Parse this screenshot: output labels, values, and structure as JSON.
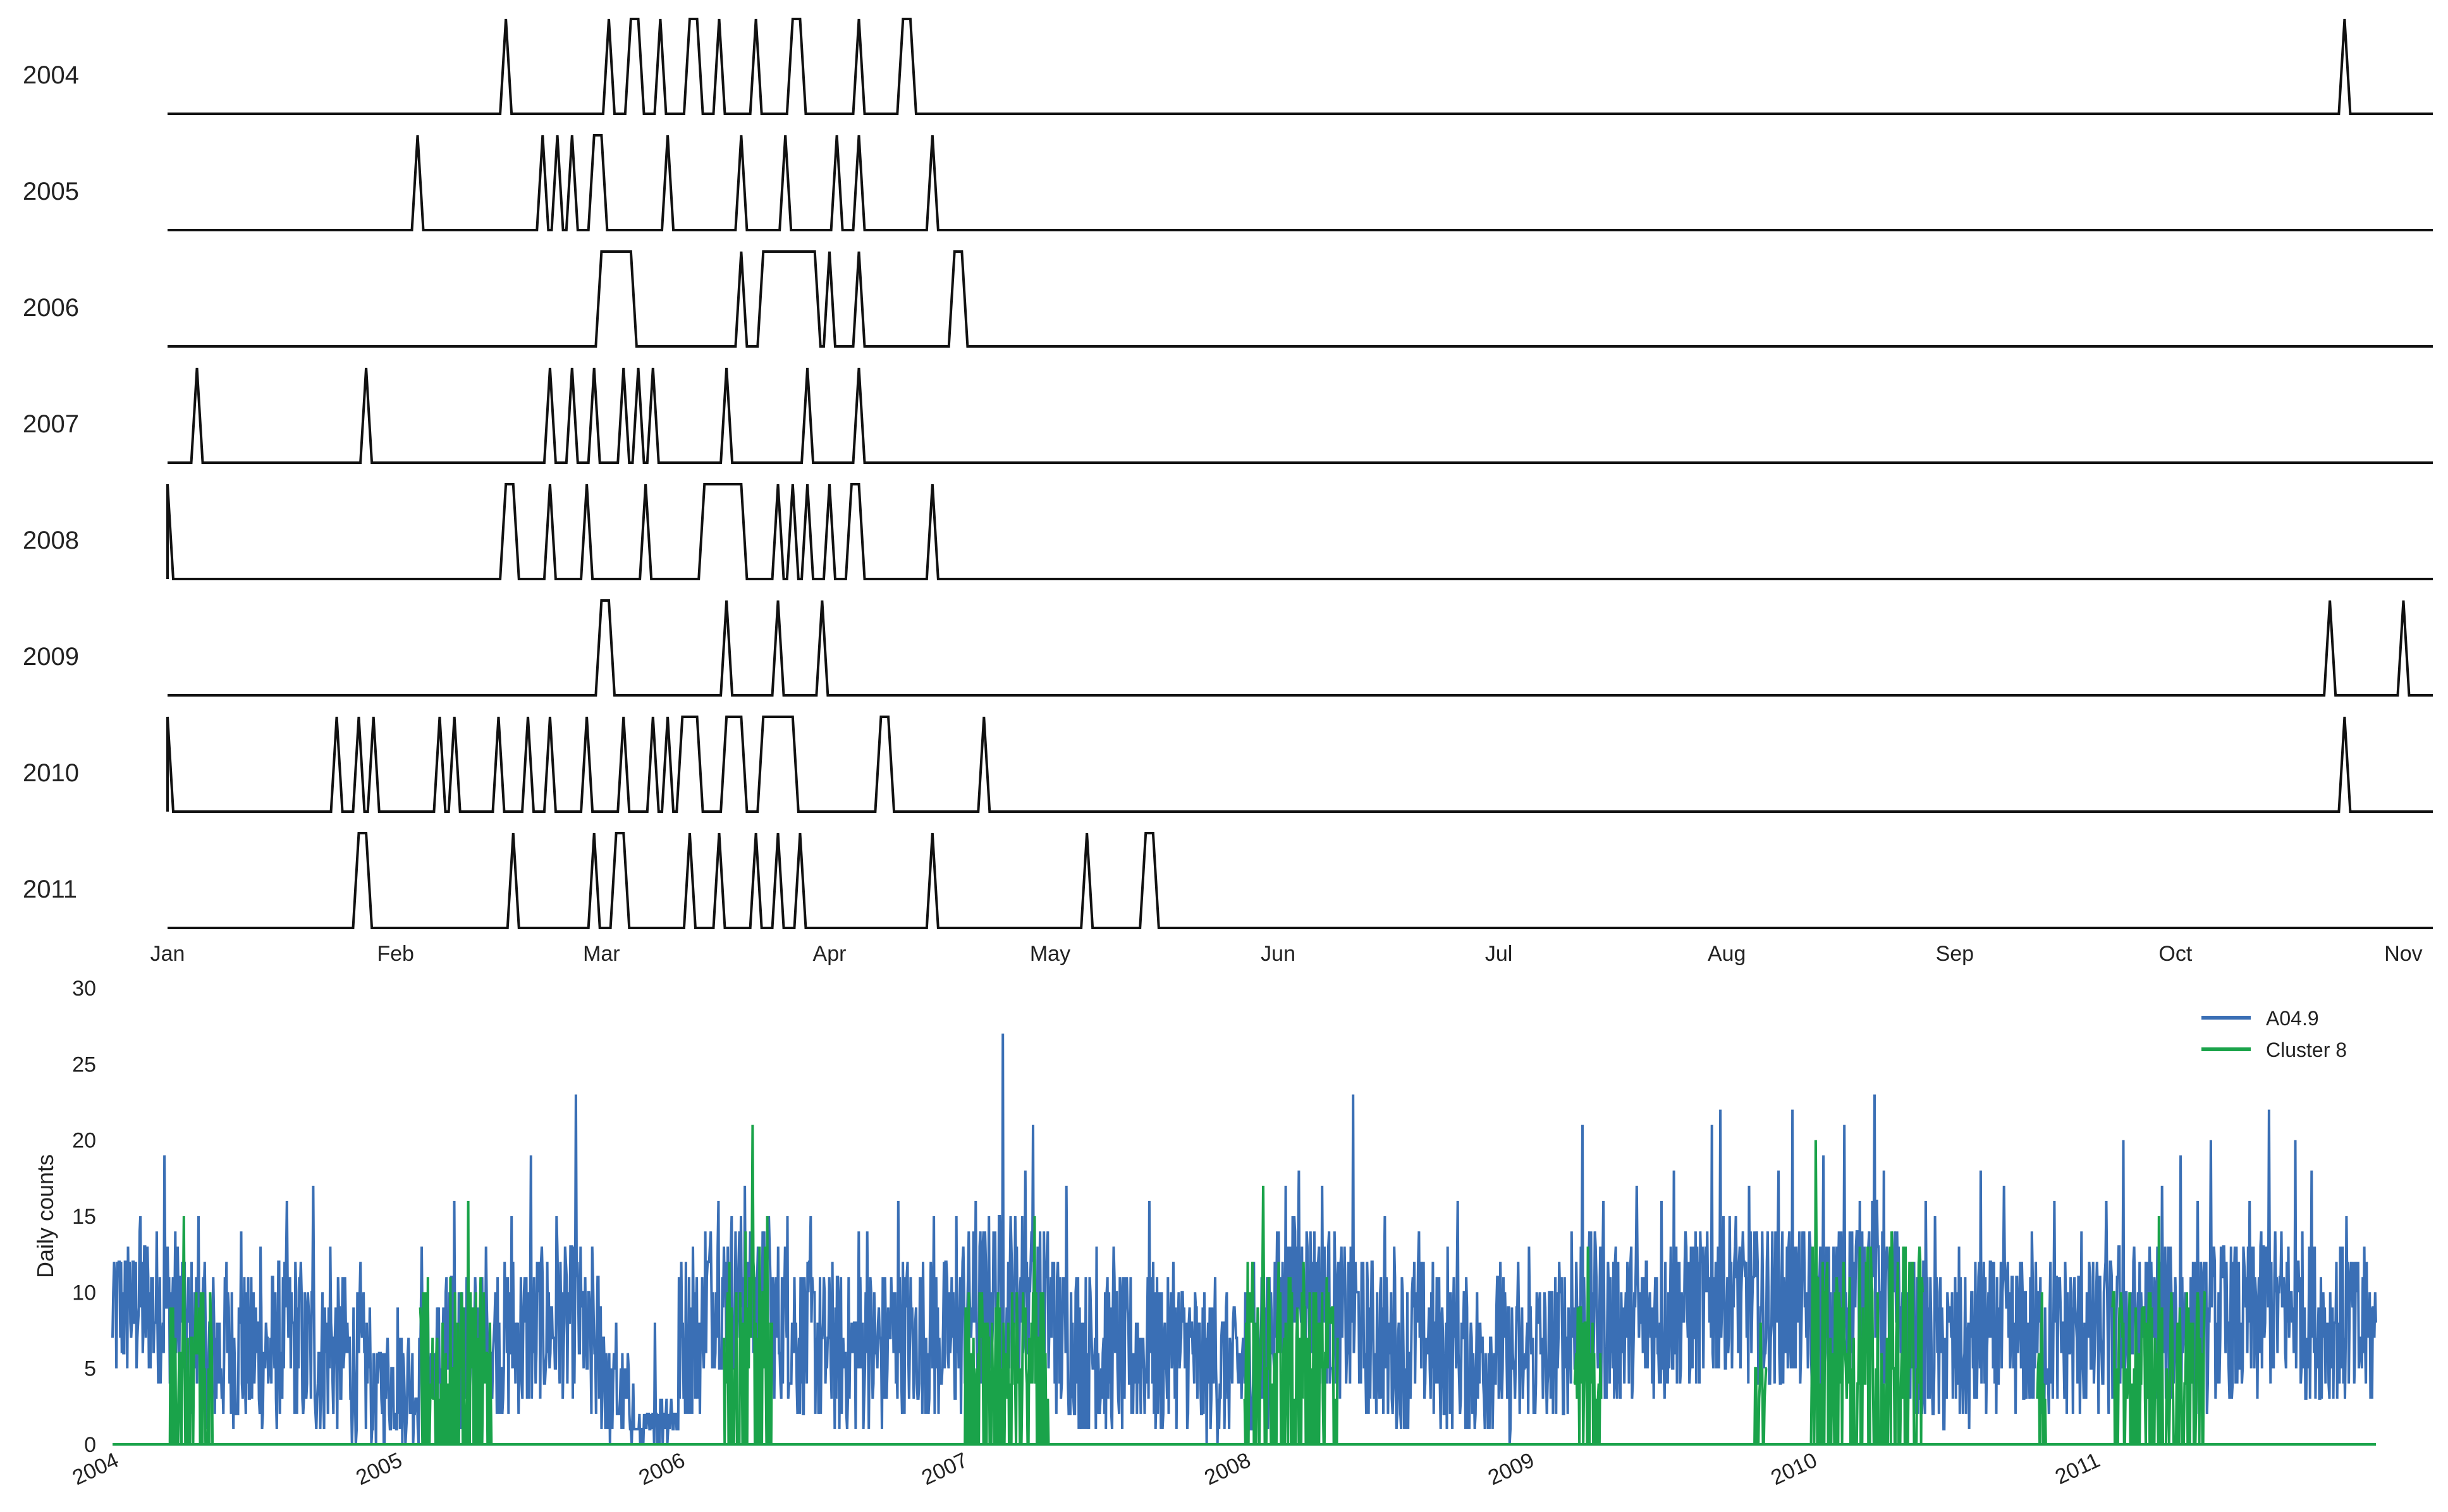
{
  "chart_data": [
    {
      "type": "line",
      "description_role": "event raster per year",
      "x_unit": "day of year",
      "xlim": [
        1,
        309
      ],
      "x_tick_labels": [
        "Jan",
        "Feb",
        "Mar",
        "Apr",
        "May",
        "Jun",
        "Jul",
        "Aug",
        "Sep",
        "Oct",
        "Nov"
      ],
      "x_tick_days": [
        1,
        32,
        60,
        91,
        121,
        152,
        182,
        213,
        244,
        274,
        305
      ],
      "series": [
        {
          "name": "2004",
          "events": [
            [
              47,
              47
            ],
            [
              61,
              61
            ],
            [
              64,
              65
            ],
            [
              68,
              68
            ],
            [
              72,
              73
            ],
            [
              76,
              76
            ],
            [
              81,
              81
            ],
            [
              86,
              87
            ],
            [
              95,
              95
            ],
            [
              101,
              102
            ],
            [
              297,
              297
            ]
          ]
        },
        {
          "name": "2005",
          "events": [
            [
              35,
              35
            ],
            [
              52,
              52
            ],
            [
              54,
              54
            ],
            [
              56,
              56
            ],
            [
              59,
              60
            ],
            [
              69,
              69
            ],
            [
              79,
              79
            ],
            [
              85,
              85
            ],
            [
              92,
              92
            ],
            [
              95,
              95
            ],
            [
              105,
              105
            ]
          ]
        },
        {
          "name": "2006",
          "events": [
            [
              60,
              64
            ],
            [
              79,
              79
            ],
            [
              82,
              89
            ],
            [
              91,
              91
            ],
            [
              95,
              95
            ],
            [
              108,
              109
            ]
          ]
        },
        {
          "name": "2007",
          "events": [
            [
              5,
              5
            ],
            [
              28,
              28
            ],
            [
              53,
              53
            ],
            [
              56,
              56
            ],
            [
              59,
              59
            ],
            [
              63,
              63
            ],
            [
              65,
              65
            ],
            [
              67,
              67
            ],
            [
              77,
              77
            ],
            [
              88,
              88
            ],
            [
              95,
              95
            ]
          ]
        },
        {
          "name": "2008",
          "events": [
            [
              1,
              1
            ],
            [
              47,
              48
            ],
            [
              53,
              53
            ],
            [
              58,
              58
            ],
            [
              66,
              66
            ],
            [
              74,
              79
            ],
            [
              84,
              84
            ],
            [
              86,
              86
            ],
            [
              88,
              88
            ],
            [
              91,
              91
            ],
            [
              94,
              95
            ],
            [
              105,
              105
            ]
          ]
        },
        {
          "name": "2009",
          "events": [
            [
              60,
              61
            ],
            [
              77,
              77
            ],
            [
              84,
              84
            ],
            [
              90,
              90
            ],
            [
              295,
              295
            ],
            [
              305,
              305
            ]
          ]
        },
        {
          "name": "2010",
          "events": [
            [
              1,
              1
            ],
            [
              24,
              24
            ],
            [
              27,
              27
            ],
            [
              29,
              29
            ],
            [
              38,
              38
            ],
            [
              40,
              40
            ],
            [
              46,
              46
            ],
            [
              50,
              50
            ],
            [
              53,
              53
            ],
            [
              58,
              58
            ],
            [
              63,
              63
            ],
            [
              67,
              67
            ],
            [
              69,
              69
            ],
            [
              71,
              73
            ],
            [
              77,
              79
            ],
            [
              82,
              86
            ],
            [
              98,
              99
            ],
            [
              112,
              112
            ],
            [
              297,
              297
            ]
          ]
        },
        {
          "name": "2011",
          "events": [
            [
              27,
              28
            ],
            [
              48,
              48
            ],
            [
              59,
              59
            ],
            [
              62,
              63
            ],
            [
              72,
              72
            ],
            [
              76,
              76
            ],
            [
              81,
              81
            ],
            [
              84,
              84
            ],
            [
              87,
              87
            ],
            [
              105,
              105
            ],
            [
              126,
              126
            ],
            [
              134,
              135
            ]
          ]
        }
      ]
    },
    {
      "type": "line",
      "xlabel": "",
      "ylabel": "Daily counts",
      "xlim": [
        "2004-01-01",
        "2011-12-31"
      ],
      "ylim": [
        0,
        30
      ],
      "y_ticks": [
        0,
        5,
        10,
        15,
        20,
        25,
        30
      ],
      "x_tick_labels": [
        "2004",
        "2005",
        "2006",
        "2007",
        "2008",
        "2009",
        "2010",
        "2011"
      ],
      "legend": "top-right",
      "series": [
        {
          "name": "A04.9",
          "color": "#3a6fb5",
          "daily_counts_by_month": [
            {
              "month": "2004-01",
              "mean": 9,
              "max": 13
            },
            {
              "month": "2004-02",
              "mean": 9,
              "max": 15
            },
            {
              "month": "2004-03",
              "mean": 9,
              "max": 19
            },
            {
              "month": "2004-04",
              "mean": 7,
              "max": 15
            },
            {
              "month": "2004-05",
              "mean": 6,
              "max": 12
            },
            {
              "month": "2004-06",
              "mean": 6,
              "max": 14
            },
            {
              "month": "2004-07",
              "mean": 6,
              "max": 13
            },
            {
              "month": "2004-08",
              "mean": 7,
              "max": 16
            },
            {
              "month": "2004-09",
              "mean": 6,
              "max": 17
            },
            {
              "month": "2004-10",
              "mean": 6,
              "max": 13
            },
            {
              "month": "2004-11",
              "mean": 5,
              "max": 12
            },
            {
              "month": "2004-12",
              "mean": 4,
              "max": 7
            },
            {
              "month": "2005-01",
              "mean": 4,
              "max": 9
            },
            {
              "month": "2005-02",
              "mean": 5,
              "max": 13
            },
            {
              "month": "2005-03",
              "mean": 6,
              "max": 16
            },
            {
              "month": "2005-04",
              "mean": 6,
              "max": 13
            },
            {
              "month": "2005-05",
              "mean": 7,
              "max": 15
            },
            {
              "month": "2005-06",
              "mean": 7,
              "max": 19
            },
            {
              "month": "2005-07",
              "mean": 8,
              "max": 15
            },
            {
              "month": "2005-08",
              "mean": 8,
              "max": 23
            },
            {
              "month": "2005-09",
              "mean": 6,
              "max": 13
            },
            {
              "month": "2005-10",
              "mean": 3,
              "max": 8
            },
            {
              "month": "2005-11",
              "mean": 1,
              "max": 4
            },
            {
              "month": "2005-12",
              "mean": 2,
              "max": 8
            },
            {
              "month": "2006-01",
              "mean": 7,
              "max": 13
            },
            {
              "month": "2006-02",
              "mean": 10,
              "max": 16
            },
            {
              "month": "2006-03",
              "mean": 10,
              "max": 17
            },
            {
              "month": "2006-04",
              "mean": 9,
              "max": 15
            },
            {
              "month": "2006-05",
              "mean": 8,
              "max": 15
            },
            {
              "month": "2006-06",
              "mean": 7,
              "max": 15
            },
            {
              "month": "2006-07",
              "mean": 6,
              "max": 12
            },
            {
              "month": "2006-08",
              "mean": 6,
              "max": 14
            },
            {
              "month": "2006-09",
              "mean": 6,
              "max": 14
            },
            {
              "month": "2006-10",
              "mean": 7,
              "max": 16
            },
            {
              "month": "2006-11",
              "mean": 7,
              "max": 15
            },
            {
              "month": "2006-12",
              "mean": 7,
              "max": 15
            },
            {
              "month": "2007-01",
              "mean": 9,
              "max": 16
            },
            {
              "month": "2007-02",
              "mean": 10,
              "max": 27
            },
            {
              "month": "2007-03",
              "mean": 10,
              "max": 18
            },
            {
              "month": "2007-04",
              "mean": 9,
              "max": 21
            },
            {
              "month": "2007-05",
              "mean": 7,
              "max": 17
            },
            {
              "month": "2007-06",
              "mean": 6,
              "max": 13
            },
            {
              "month": "2007-07",
              "mean": 6,
              "max": 13
            },
            {
              "month": "2007-08",
              "mean": 6,
              "max": 16
            },
            {
              "month": "2007-09",
              "mean": 6,
              "max": 12
            },
            {
              "month": "2007-10",
              "mean": 6,
              "max": 12
            },
            {
              "month": "2007-11",
              "mean": 5,
              "max": 11
            },
            {
              "month": "2007-12",
              "mean": 5,
              "max": 10
            },
            {
              "month": "2008-01",
              "mean": 6,
              "max": 12
            },
            {
              "month": "2008-02",
              "mean": 9,
              "max": 17
            },
            {
              "month": "2008-03",
              "mean": 10,
              "max": 18
            },
            {
              "month": "2008-04",
              "mean": 9,
              "max": 17
            },
            {
              "month": "2008-05",
              "mean": 8,
              "max": 23
            },
            {
              "month": "2008-06",
              "mean": 7,
              "max": 15
            },
            {
              "month": "2008-07",
              "mean": 6,
              "max": 13
            },
            {
              "month": "2008-08",
              "mean": 7,
              "max": 14
            },
            {
              "month": "2008-09",
              "mean": 6,
              "max": 13
            },
            {
              "month": "2008-10",
              "mean": 6,
              "max": 16
            },
            {
              "month": "2008-11",
              "mean": 6,
              "max": 12
            },
            {
              "month": "2008-12",
              "mean": 5,
              "max": 12
            },
            {
              "month": "2009-01",
              "mean": 6,
              "max": 13
            },
            {
              "month": "2009-02",
              "mean": 7,
              "max": 14
            },
            {
              "month": "2009-03",
              "mean": 9,
              "max": 21
            },
            {
              "month": "2009-04",
              "mean": 8,
              "max": 16
            },
            {
              "month": "2009-05",
              "mean": 8,
              "max": 17
            },
            {
              "month": "2009-06",
              "mean": 8,
              "max": 16
            },
            {
              "month": "2009-07",
              "mean": 9,
              "max": 18
            },
            {
              "month": "2009-08",
              "mean": 9,
              "max": 21
            },
            {
              "month": "2009-09",
              "mean": 10,
              "max": 22
            },
            {
              "month": "2009-10",
              "mean": 9,
              "max": 17
            },
            {
              "month": "2009-11",
              "mean": 9,
              "max": 18
            },
            {
              "month": "2009-12",
              "mean": 9,
              "max": 22
            },
            {
              "month": "2010-01",
              "mean": 8,
              "max": 19
            },
            {
              "month": "2010-02",
              "mean": 10,
              "max": 21
            },
            {
              "month": "2010-03",
              "mean": 11,
              "max": 23
            },
            {
              "month": "2010-04",
              "mean": 9,
              "max": 18
            },
            {
              "month": "2010-05",
              "mean": 7,
              "max": 16
            },
            {
              "month": "2010-06",
              "mean": 6,
              "max": 15
            },
            {
              "month": "2010-07",
              "mean": 6,
              "max": 13
            },
            {
              "month": "2010-08",
              "mean": 7,
              "max": 18
            },
            {
              "month": "2010-09",
              "mean": 7,
              "max": 17
            },
            {
              "month": "2010-10",
              "mean": 7,
              "max": 14
            },
            {
              "month": "2010-11",
              "mean": 7,
              "max": 16
            },
            {
              "month": "2010-12",
              "mean": 7,
              "max": 14
            },
            {
              "month": "2011-01",
              "mean": 7,
              "max": 16
            },
            {
              "month": "2011-02",
              "mean": 8,
              "max": 20
            },
            {
              "month": "2011-03",
              "mean": 8,
              "max": 17
            },
            {
              "month": "2011-04",
              "mean": 8,
              "max": 19
            },
            {
              "month": "2011-05",
              "mean": 7,
              "max": 16
            },
            {
              "month": "2011-06",
              "mean": 8,
              "max": 20
            },
            {
              "month": "2011-07",
              "mean": 8,
              "max": 16
            },
            {
              "month": "2011-08",
              "mean": 9,
              "max": 22
            },
            {
              "month": "2011-09",
              "mean": 9,
              "max": 20
            },
            {
              "month": "2011-10",
              "mean": 8,
              "max": 18
            },
            {
              "month": "2011-11",
              "mean": 8,
              "max": 15
            },
            {
              "month": "2011-12",
              "mean": 7,
              "max": 13
            }
          ]
        },
        {
          "name": "Cluster 8",
          "color": "#1aa34a",
          "active_periods": [
            {
              "start": "2004-03-15",
              "end": "2004-05-10",
              "max": 15
            },
            {
              "start": "2005-02-01",
              "end": "2005-05-05",
              "max": 16
            },
            {
              "start": "2006-02-28",
              "end": "2006-05-01",
              "max": 21
            },
            {
              "start": "2007-01-05",
              "end": "2007-04-25",
              "max": 15
            },
            {
              "start": "2008-01-01",
              "end": "2008-04-30",
              "max": 17
            },
            {
              "start": "2009-03-01",
              "end": "2009-04-05",
              "max": 13
            },
            {
              "start": "2009-10-20",
              "end": "2009-11-05",
              "max": 8
            },
            {
              "start": "2010-01-01",
              "end": "2010-05-25",
              "max": 20
            },
            {
              "start": "2010-10-20",
              "end": "2010-10-31",
              "max": 10
            },
            {
              "start": "2011-01-25",
              "end": "2011-05-25",
              "max": 15
            }
          ]
        }
      ]
    }
  ]
}
